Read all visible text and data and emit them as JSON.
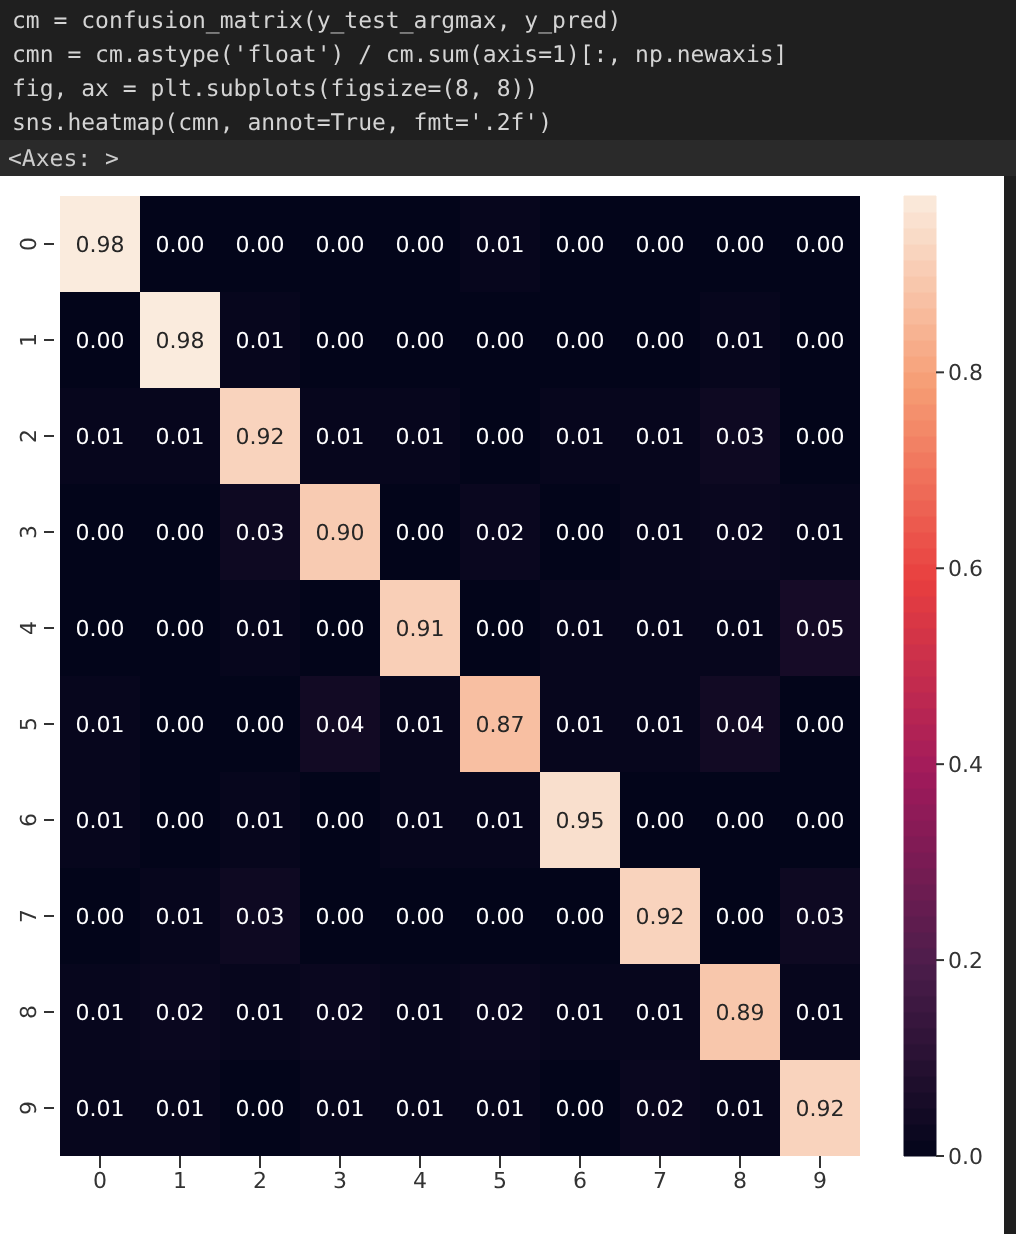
{
  "chart_data": {
    "type": "heatmap",
    "annotations": [
      "cm = confusion_matrix(y_test_argmax, y_pred)",
      "cmn = cm.astype('float') / cm.sum(axis=1)[:, np.newaxis]",
      "fig, ax = plt.subplots(figsize=(8, 8))",
      "sns.heatmap(cmn, annot=True, fmt='.2f')",
      "<Axes: >"
    ],
    "categories": [
      "0",
      "1",
      "2",
      "3",
      "4",
      "5",
      "6",
      "7",
      "8",
      "9"
    ],
    "y_categories": [
      "0",
      "1",
      "2",
      "3",
      "4",
      "5",
      "6",
      "7",
      "8",
      "9"
    ],
    "cells": [
      [
        0.98,
        0.0,
        0.0,
        0.0,
        0.0,
        0.01,
        0.0,
        0.0,
        0.0,
        0.0
      ],
      [
        0.0,
        0.98,
        0.01,
        0.0,
        0.0,
        0.0,
        0.0,
        0.0,
        0.01,
        0.0
      ],
      [
        0.01,
        0.01,
        0.92,
        0.01,
        0.01,
        0.0,
        0.01,
        0.01,
        0.03,
        0.0
      ],
      [
        0.0,
        0.0,
        0.03,
        0.9,
        0.0,
        0.02,
        0.0,
        0.01,
        0.02,
        0.01
      ],
      [
        0.0,
        0.0,
        0.01,
        0.0,
        0.91,
        0.0,
        0.01,
        0.01,
        0.01,
        0.05
      ],
      [
        0.01,
        0.0,
        0.0,
        0.04,
        0.01,
        0.87,
        0.01,
        0.01,
        0.04,
        0.0
      ],
      [
        0.01,
        0.0,
        0.01,
        0.0,
        0.01,
        0.01,
        0.95,
        0.0,
        0.0,
        0.0
      ],
      [
        0.0,
        0.01,
        0.03,
        0.0,
        0.0,
        0.0,
        0.0,
        0.92,
        0.0,
        0.03
      ],
      [
        0.01,
        0.02,
        0.01,
        0.02,
        0.01,
        0.02,
        0.01,
        0.01,
        0.89,
        0.01
      ],
      [
        0.01,
        0.01,
        0.0,
        0.01,
        0.01,
        0.01,
        0.0,
        0.02,
        0.01,
        0.92
      ]
    ],
    "cell_labels": [
      [
        "0.98",
        "0.00",
        "0.00",
        "0.00",
        "0.00",
        "0.01",
        "0.00",
        "0.00",
        "0.00",
        "0.00"
      ],
      [
        "0.00",
        "0.98",
        "0.01",
        "0.00",
        "0.00",
        "0.00",
        "0.00",
        "0.00",
        "0.01",
        "0.00"
      ],
      [
        "0.01",
        "0.01",
        "0.92",
        "0.01",
        "0.01",
        "0.00",
        "0.01",
        "0.01",
        "0.03",
        "0.00"
      ],
      [
        "0.00",
        "0.00",
        "0.03",
        "0.90",
        "0.00",
        "0.02",
        "0.00",
        "0.01",
        "0.02",
        "0.01"
      ],
      [
        "0.00",
        "0.00",
        "0.01",
        "0.00",
        "0.91",
        "0.00",
        "0.01",
        "0.01",
        "0.01",
        "0.05"
      ],
      [
        "0.01",
        "0.00",
        "0.00",
        "0.04",
        "0.01",
        "0.87",
        "0.01",
        "0.01",
        "0.04",
        "0.00"
      ],
      [
        "0.01",
        "0.00",
        "0.01",
        "0.00",
        "0.01",
        "0.01",
        "0.95",
        "0.00",
        "0.00",
        "0.00"
      ],
      [
        "0.00",
        "0.01",
        "0.03",
        "0.00",
        "0.00",
        "0.00",
        "0.00",
        "0.92",
        "0.00",
        "0.03"
      ],
      [
        "0.01",
        "0.02",
        "0.01",
        "0.02",
        "0.01",
        "0.02",
        "0.01",
        "0.01",
        "0.89",
        "0.01"
      ],
      [
        "0.01",
        "0.01",
        "0.00",
        "0.01",
        "0.01",
        "0.01",
        "0.00",
        "0.02",
        "0.01",
        "0.92"
      ]
    ],
    "clim": [
      0,
      0.98
    ],
    "cticks": [
      {
        "value": 0,
        "label": "0.0"
      },
      {
        "value": 0.2,
        "label": "0.2"
      },
      {
        "value": 0.4,
        "label": "0.4"
      },
      {
        "value": 0.6,
        "label": "0.6"
      },
      {
        "value": 0.8,
        "label": "0.8"
      }
    ]
  }
}
